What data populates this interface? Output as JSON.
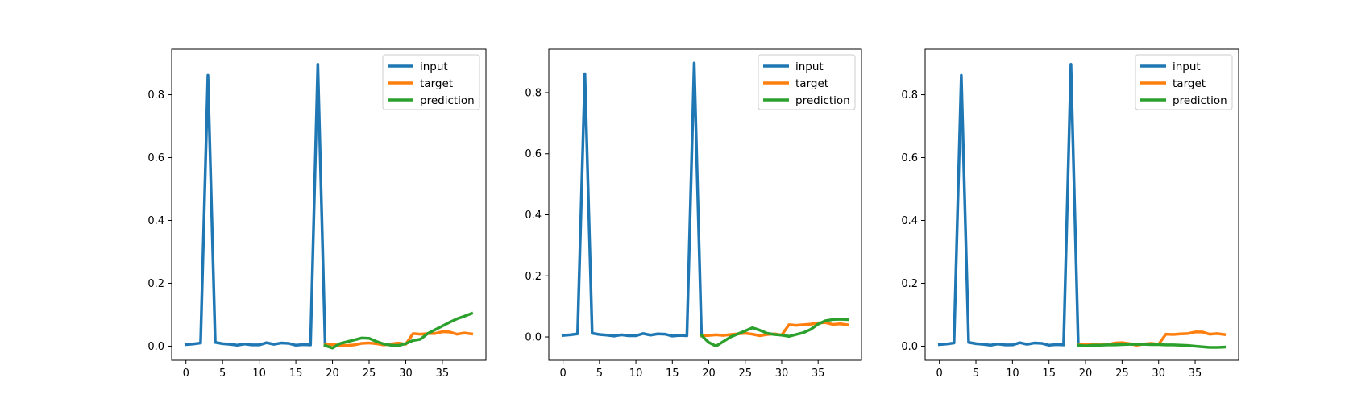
{
  "colors": {
    "input": "#1f77b4",
    "target": "#ff7f0e",
    "prediction": "#2ca02c"
  },
  "chart_data": [
    {
      "type": "line",
      "title": "",
      "xlabel": "",
      "ylabel": "",
      "xlim": [
        -1.95,
        40.95
      ],
      "ylim": [
        -0.045,
        0.945
      ],
      "xticks": [
        0,
        5,
        10,
        15,
        20,
        25,
        30,
        35
      ],
      "yticks": [
        0.0,
        0.2,
        0.4,
        0.6,
        0.8
      ],
      "legend": "top-right",
      "grid": false,
      "series": [
        {
          "name": "input",
          "color_key": "input",
          "x": [
            0,
            1,
            2,
            3,
            4,
            5,
            6,
            7,
            8,
            9,
            10,
            11,
            12,
            13,
            14,
            15,
            16,
            17,
            18,
            19
          ],
          "y": [
            0.005,
            0.007,
            0.01,
            0.862,
            0.012,
            0.008,
            0.006,
            0.003,
            0.007,
            0.004,
            0.004,
            0.011,
            0.006,
            0.01,
            0.009,
            0.003,
            0.005,
            0.004,
            0.897,
            0.004
          ]
        },
        {
          "name": "target",
          "color_key": "target",
          "x": [
            19,
            20,
            21,
            22,
            23,
            24,
            25,
            26,
            27,
            28,
            29,
            30,
            31,
            32,
            33,
            34,
            35,
            36,
            37,
            38,
            39
          ],
          "y": [
            0.004,
            0.005,
            0.003,
            0.002,
            0.004,
            0.009,
            0.01,
            0.008,
            0.004,
            0.007,
            0.01,
            0.006,
            0.04,
            0.038,
            0.04,
            0.04,
            0.046,
            0.045,
            0.038,
            0.042,
            0.039
          ]
        },
        {
          "name": "prediction",
          "color_key": "prediction",
          "x": [
            19,
            20,
            21,
            22,
            23,
            24,
            25,
            26,
            27,
            28,
            29,
            30,
            31,
            32,
            33,
            34,
            35,
            36,
            37,
            38,
            39
          ],
          "y": [
            0.002,
            -0.006,
            0.008,
            0.014,
            0.02,
            0.026,
            0.025,
            0.015,
            0.007,
            0.003,
            0.002,
            0.008,
            0.018,
            0.022,
            0.04,
            0.052,
            0.064,
            0.076,
            0.087,
            0.095,
            0.104
          ]
        }
      ]
    },
    {
      "type": "line",
      "title": "",
      "xlabel": "",
      "ylabel": "",
      "xlim": [
        -1.95,
        40.95
      ],
      "ylim": [
        -0.0765,
        0.9425
      ],
      "xticks": [
        0,
        5,
        10,
        15,
        20,
        25,
        30,
        35
      ],
      "yticks": [
        0.0,
        0.2,
        0.4,
        0.6,
        0.8
      ],
      "legend": "top-right",
      "grid": false,
      "series": [
        {
          "name": "input",
          "color_key": "input",
          "x": [
            0,
            1,
            2,
            3,
            4,
            5,
            6,
            7,
            8,
            9,
            10,
            11,
            12,
            13,
            14,
            15,
            16,
            17,
            18,
            19
          ],
          "y": [
            0.005,
            0.007,
            0.01,
            0.862,
            0.012,
            0.008,
            0.006,
            0.003,
            0.007,
            0.004,
            0.004,
            0.011,
            0.006,
            0.01,
            0.009,
            0.003,
            0.005,
            0.004,
            0.897,
            0.004
          ]
        },
        {
          "name": "target",
          "color_key": "target",
          "x": [
            19,
            20,
            21,
            22,
            23,
            24,
            25,
            26,
            27,
            28,
            29,
            30,
            31,
            32,
            33,
            34,
            35,
            36,
            37,
            38,
            39
          ],
          "y": [
            0.004,
            0.005,
            0.007,
            0.005,
            0.008,
            0.01,
            0.012,
            0.009,
            0.004,
            0.008,
            0.01,
            0.006,
            0.04,
            0.038,
            0.04,
            0.042,
            0.046,
            0.047,
            0.041,
            0.043,
            0.04
          ]
        },
        {
          "name": "prediction",
          "color_key": "prediction",
          "x": [
            19,
            20,
            21,
            22,
            23,
            24,
            25,
            26,
            27,
            28,
            29,
            30,
            31,
            32,
            33,
            34,
            35,
            36,
            37,
            38,
            39
          ],
          "y": [
            0.005,
            -0.018,
            -0.03,
            -0.015,
            0.0,
            0.01,
            0.02,
            0.03,
            0.022,
            0.012,
            0.008,
            0.006,
            0.002,
            0.008,
            0.014,
            0.025,
            0.042,
            0.053,
            0.057,
            0.058,
            0.057
          ]
        }
      ]
    },
    {
      "type": "line",
      "title": "",
      "xlabel": "",
      "ylabel": "",
      "xlim": [
        -1.95,
        40.95
      ],
      "ylim": [
        -0.045,
        0.945
      ],
      "xticks": [
        0,
        5,
        10,
        15,
        20,
        25,
        30,
        35
      ],
      "yticks": [
        0.0,
        0.2,
        0.4,
        0.6,
        0.8
      ],
      "legend": "top-right",
      "grid": false,
      "series": [
        {
          "name": "input",
          "color_key": "input",
          "x": [
            0,
            1,
            2,
            3,
            4,
            5,
            6,
            7,
            8,
            9,
            10,
            11,
            12,
            13,
            14,
            15,
            16,
            17,
            18,
            19
          ],
          "y": [
            0.005,
            0.007,
            0.01,
            0.862,
            0.012,
            0.008,
            0.006,
            0.003,
            0.007,
            0.004,
            0.004,
            0.011,
            0.006,
            0.01,
            0.009,
            0.003,
            0.005,
            0.004,
            0.897,
            0.004
          ]
        },
        {
          "name": "target",
          "color_key": "target",
          "x": [
            19,
            20,
            21,
            22,
            23,
            24,
            25,
            26,
            27,
            28,
            29,
            30,
            31,
            32,
            33,
            34,
            35,
            36,
            37,
            38,
            39
          ],
          "y": [
            0.004,
            0.005,
            0.006,
            0.004,
            0.005,
            0.01,
            0.011,
            0.008,
            0.003,
            0.007,
            0.009,
            0.006,
            0.038,
            0.037,
            0.039,
            0.04,
            0.045,
            0.045,
            0.038,
            0.04,
            0.037
          ]
        },
        {
          "name": "prediction",
          "color_key": "prediction",
          "x": [
            19,
            20,
            21,
            22,
            23,
            24,
            25,
            26,
            27,
            28,
            29,
            30,
            31,
            32,
            33,
            34,
            35,
            36,
            37,
            38,
            39
          ],
          "y": [
            0.003,
            0.001,
            0.003,
            0.003,
            0.004,
            0.004,
            0.005,
            0.006,
            0.006,
            0.006,
            0.005,
            0.005,
            0.004,
            0.004,
            0.003,
            0.002,
            0.0,
            -0.002,
            -0.004,
            -0.004,
            -0.003
          ]
        }
      ]
    }
  ]
}
